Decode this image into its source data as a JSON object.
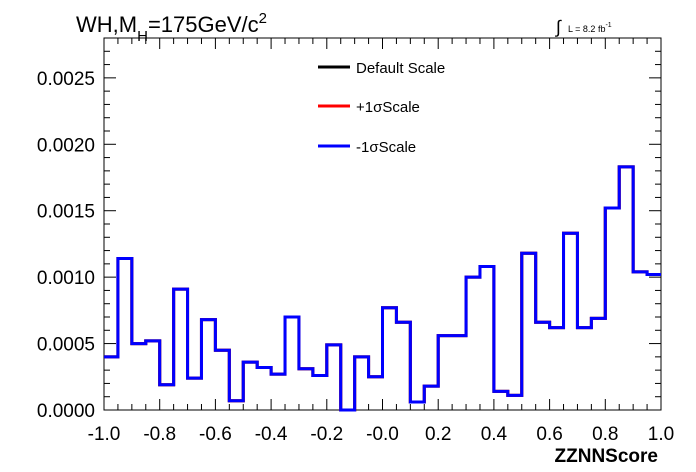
{
  "chart_data": {
    "type": "line",
    "step": true,
    "title_main": "WH,M",
    "title_sub": "H",
    "title_rest": "=175GeV/c",
    "title_sup": "2",
    "lumi_label": "L = 8.2 fb",
    "lumi_sup": "-1",
    "xlabel": "ZZNNScore",
    "ylabel": "",
    "xlim": [
      -1.0,
      1.0
    ],
    "ylim": [
      0.0,
      0.0028
    ],
    "x_ticks": [
      -1.0,
      -0.8,
      -0.6,
      -0.4,
      -0.2,
      0.0,
      0.2,
      0.4,
      0.6,
      0.8,
      1.0
    ],
    "x_tick_labels": [
      "-1.0",
      "-0.8",
      "-0.6",
      "-0.4",
      "-0.2",
      "-0.0",
      "0.2",
      "0.4",
      "0.6",
      "0.8",
      "1.0"
    ],
    "y_ticks": [
      0.0,
      0.0005,
      0.001,
      0.0015,
      0.002,
      0.0025
    ],
    "y_tick_labels": [
      "0.0000",
      "0.0005",
      "0.0010",
      "0.0015",
      "0.0020",
      "0.0025"
    ],
    "grid": false,
    "legend_position": "top-center",
    "bin_edges": [
      -1.0,
      -0.95,
      -0.9,
      -0.85,
      -0.8,
      -0.75,
      -0.7,
      -0.65,
      -0.6,
      -0.55,
      -0.5,
      -0.45,
      -0.4,
      -0.35,
      -0.3,
      -0.25,
      -0.2,
      -0.15,
      -0.1,
      -0.05,
      0.0,
      0.05,
      0.1,
      0.15,
      0.2,
      0.25,
      0.3,
      0.35,
      0.4,
      0.45,
      0.5,
      0.55,
      0.6,
      0.65,
      0.7,
      0.75,
      0.8,
      0.85,
      0.9,
      0.95,
      1.0
    ],
    "series": [
      {
        "name": "Default Scale",
        "color": "#000000",
        "values": [
          0.0004,
          0.00114,
          0.0005,
          0.00052,
          0.00019,
          0.00091,
          0.00024,
          0.00068,
          0.00045,
          7e-05,
          0.00036,
          0.00032,
          0.00027,
          0.0007,
          0.00031,
          0.00026,
          0.00049,
          0.0,
          0.0004,
          0.00025,
          0.00077,
          0.00066,
          6e-05,
          0.00018,
          0.00056,
          0.00056,
          0.001,
          0.00108,
          0.00014,
          0.00011,
          0.00118,
          0.00066,
          0.00062,
          0.00133,
          0.00062,
          0.00069,
          0.00152,
          0.00183,
          0.00104,
          0.00102
        ]
      },
      {
        "name": "+1σScale",
        "color": "#ff0000",
        "values": [
          0.0004,
          0.00114,
          0.0005,
          0.00052,
          0.00019,
          0.00091,
          0.00024,
          0.00068,
          0.00045,
          7e-05,
          0.00036,
          0.00032,
          0.00027,
          0.0007,
          0.00031,
          0.00026,
          0.00049,
          0.0,
          0.0004,
          0.00025,
          0.00077,
          0.00066,
          6e-05,
          0.00018,
          0.00056,
          0.00056,
          0.001,
          0.00108,
          0.00014,
          0.00011,
          0.00118,
          0.00066,
          0.00062,
          0.00133,
          0.00062,
          0.00069,
          0.00152,
          0.00183,
          0.00104,
          0.00102
        ]
      },
      {
        "name": "-1σScale",
        "color": "#0000ff",
        "values": [
          0.0004,
          0.00114,
          0.0005,
          0.00052,
          0.00019,
          0.00091,
          0.00024,
          0.00068,
          0.00045,
          7e-05,
          0.00036,
          0.00032,
          0.00027,
          0.0007,
          0.00031,
          0.00026,
          0.00049,
          0.0,
          0.0004,
          0.00025,
          0.00077,
          0.00066,
          6e-05,
          0.00018,
          0.00056,
          0.00056,
          0.001,
          0.00108,
          0.00014,
          0.00011,
          0.00118,
          0.00066,
          0.00062,
          0.00133,
          0.00062,
          0.00069,
          0.00152,
          0.00183,
          0.00104,
          0.00102
        ]
      }
    ]
  }
}
